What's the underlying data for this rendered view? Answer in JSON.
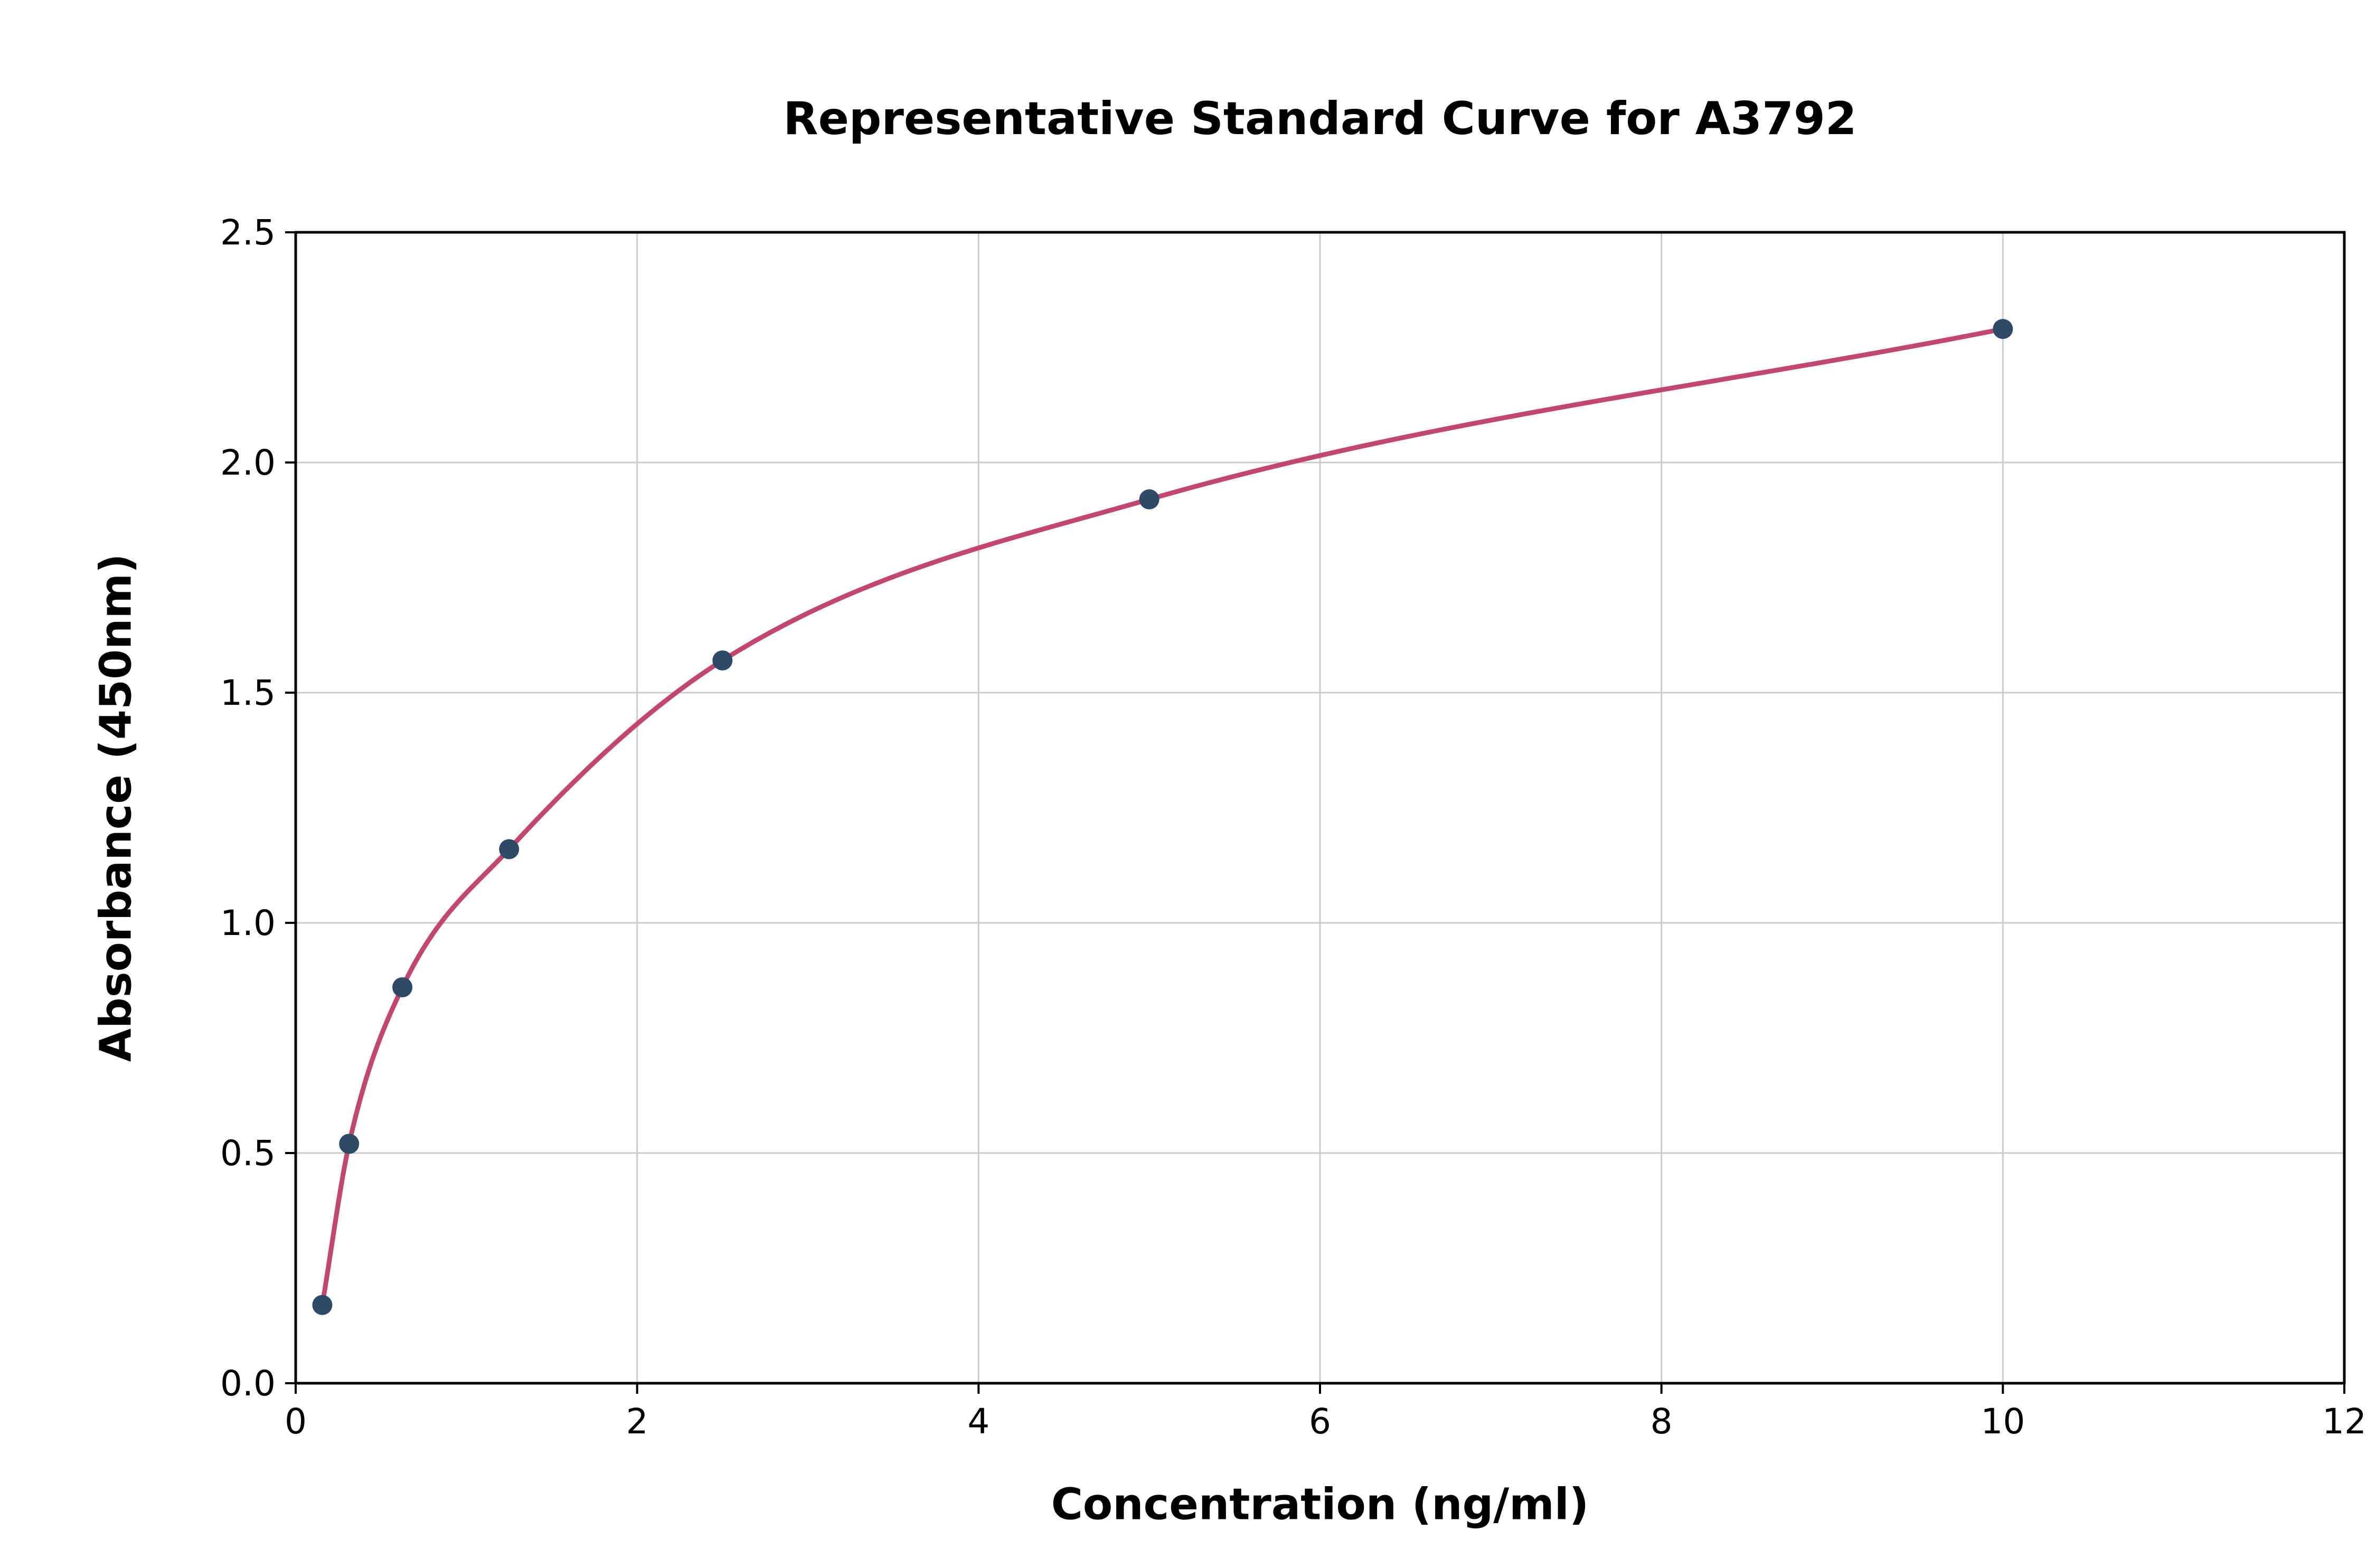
{
  "chart_data": {
    "type": "scatter",
    "title": "Representative Standard Curve for A3792",
    "xlabel": "Concentration (ng/ml)",
    "ylabel": "Absorbance (450nm)",
    "xlim": [
      0,
      12
    ],
    "ylim": [
      0,
      2.5
    ],
    "xticks": [
      0,
      2,
      4,
      6,
      8,
      10,
      12
    ],
    "xtick_labels": [
      "0",
      "2",
      "4",
      "6",
      "8",
      "10",
      "12"
    ],
    "yticks": [
      0.0,
      0.5,
      1.0,
      1.5,
      2.0,
      2.5
    ],
    "ytick_labels": [
      "0.0",
      "0.5",
      "1.0",
      "1.5",
      "2.0",
      "2.5"
    ],
    "grid": true,
    "legend": "none",
    "series": [
      {
        "name": "standard-curve",
        "x": [
          0.156,
          0.313,
          0.625,
          1.25,
          2.5,
          5,
          10
        ],
        "y": [
          0.17,
          0.52,
          0.86,
          1.16,
          1.57,
          1.92,
          2.29
        ],
        "marker": "circle",
        "fit": "smooth-curve-through-points"
      }
    ],
    "colors": {
      "curve": "#c2466e",
      "marker": "#2e4a66",
      "grid": "#cccccc",
      "spine": "#000000",
      "text": "#000000"
    }
  }
}
